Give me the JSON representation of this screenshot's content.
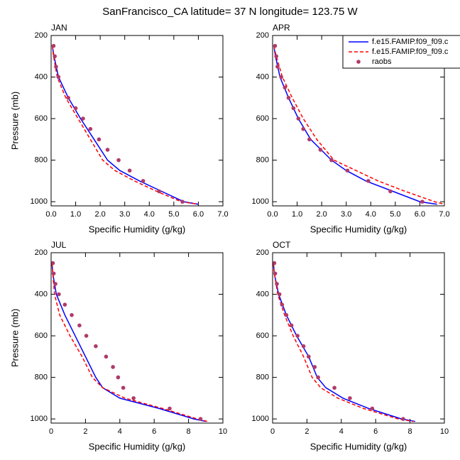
{
  "title": "SanFrancisco_CA  latitude= 37 N longitude= 123.75 W",
  "chart_data": [
    {
      "type": "line",
      "title": "JAN",
      "xlabel": "Specific Humidity (g/kg)",
      "ylabel": "Pressure (mb)",
      "xlim": [
        0,
        7
      ],
      "xticks": [
        {
          "value": 0,
          "label": "0.0"
        },
        {
          "value": 1,
          "label": "1.0"
        },
        {
          "value": 2,
          "label": "2.0"
        },
        {
          "value": 3,
          "label": "3.0"
        },
        {
          "value": 4,
          "label": "4.0"
        },
        {
          "value": 5,
          "label": "5.0"
        },
        {
          "value": 6,
          "label": "6.0"
        },
        {
          "value": 7,
          "label": "7.0"
        }
      ],
      "ylim": [
        1020,
        200
      ],
      "yticks": [
        200,
        400,
        600,
        800,
        1000
      ],
      "series": [
        {
          "color": "#0000ff",
          "mode": "line",
          "dashed": false,
          "x": [
            0.05,
            0.12,
            0.3,
            0.7,
            1.2,
            1.75,
            2.3,
            2.8,
            3.6,
            4.5,
            5.4,
            6.0
          ],
          "y": [
            250,
            300,
            400,
            500,
            600,
            700,
            800,
            850,
            900,
            950,
            1000,
            1012
          ]
        },
        {
          "color": "#ff0000",
          "mode": "line",
          "dashed": true,
          "x": [
            0.05,
            0.1,
            0.25,
            0.6,
            1.1,
            1.6,
            2.1,
            2.6,
            3.4,
            4.3,
            5.3,
            6.0
          ],
          "y": [
            250,
            300,
            400,
            500,
            600,
            700,
            800,
            850,
            900,
            950,
            1000,
            1012
          ]
        },
        {
          "color": "#b03a6a",
          "mode": "markers",
          "x": [
            0.1,
            0.15,
            0.2,
            0.3,
            0.7,
            1.0,
            1.3,
            1.6,
            1.95,
            2.3,
            2.75,
            3.2,
            3.75,
            4.4,
            5.35
          ],
          "y": [
            250,
            300,
            350,
            400,
            500,
            550,
            600,
            650,
            700,
            750,
            800,
            850,
            900,
            950,
            1000
          ]
        }
      ]
    },
    {
      "type": "line",
      "title": "APR",
      "xlabel": "Specific Humidity (g/kg)",
      "legend": "upper right",
      "xlim": [
        0,
        7
      ],
      "xticks": [
        {
          "value": 0,
          "label": "0.0"
        },
        {
          "value": 1,
          "label": "1.0"
        },
        {
          "value": 2,
          "label": "2.0"
        },
        {
          "value": 3,
          "label": "3.0"
        },
        {
          "value": 4,
          "label": "4.0"
        },
        {
          "value": 5,
          "label": "5.0"
        },
        {
          "value": 6,
          "label": "6.0"
        },
        {
          "value": 7,
          "label": "7.0"
        }
      ],
      "ylim": [
        1020,
        200
      ],
      "yticks": [
        200,
        400,
        600,
        800,
        1000
      ],
      "series": [
        {
          "name": "f.e15.FAMIP.f09_f09.c",
          "color": "#0000ff",
          "mode": "line",
          "dashed": false,
          "x": [
            0.05,
            0.12,
            0.3,
            0.65,
            1.05,
            1.55,
            2.4,
            3.0,
            3.8,
            4.9,
            6.0,
            6.7
          ],
          "y": [
            250,
            300,
            400,
            500,
            600,
            700,
            800,
            850,
            900,
            950,
            1000,
            1012
          ]
        },
        {
          "name": "f.e15.FAMIP.f09_f09.c",
          "color": "#ff0000",
          "mode": "line",
          "dashed": true,
          "x": [
            0.05,
            0.15,
            0.4,
            0.8,
            1.25,
            1.8,
            2.5,
            3.4,
            4.3,
            5.4,
            6.6,
            7.0
          ],
          "y": [
            250,
            300,
            400,
            500,
            600,
            700,
            800,
            850,
            900,
            950,
            1000,
            1012
          ]
        },
        {
          "name": "raobs",
          "color": "#b03a6a",
          "mode": "markers",
          "x": [
            0.1,
            0.15,
            0.2,
            0.35,
            0.5,
            0.65,
            0.85,
            1.05,
            1.25,
            1.5,
            1.95,
            2.4,
            3.05,
            3.9,
            4.8,
            6.1
          ],
          "y": [
            250,
            300,
            350,
            400,
            450,
            500,
            550,
            600,
            650,
            700,
            750,
            800,
            850,
            900,
            950,
            1000
          ]
        }
      ]
    },
    {
      "type": "line",
      "title": "JUL",
      "xlabel": "Specific Humidity (g/kg)",
      "ylabel": "Pressure (mb)",
      "xlim": [
        0,
        10
      ],
      "xticks": [
        0,
        2,
        4,
        6,
        8,
        10
      ],
      "ylim": [
        1020,
        200
      ],
      "yticks": [
        200,
        400,
        600,
        800,
        1000
      ],
      "series": [
        {
          "color": "#0000ff",
          "mode": "line",
          "dashed": false,
          "x": [
            0.05,
            0.1,
            0.3,
            0.8,
            1.4,
            2.0,
            2.6,
            3.0,
            4.0,
            6.3,
            8.3,
            9.0
          ],
          "y": [
            250,
            300,
            400,
            500,
            600,
            700,
            800,
            850,
            900,
            950,
            1000,
            1012
          ]
        },
        {
          "color": "#ff0000",
          "mode": "line",
          "dashed": true,
          "x": [
            0.05,
            0.1,
            0.2,
            0.5,
            1.1,
            1.8,
            2.4,
            3.0,
            4.3,
            6.5,
            8.5,
            9.1
          ],
          "y": [
            250,
            300,
            400,
            500,
            600,
            700,
            800,
            850,
            900,
            950,
            1000,
            1012
          ]
        },
        {
          "color": "#b03a6a",
          "mode": "markers",
          "x": [
            0.1,
            0.15,
            0.25,
            0.45,
            0.8,
            1.2,
            1.65,
            2.05,
            2.6,
            3.2,
            3.6,
            3.9,
            4.2,
            4.8,
            6.9,
            8.7
          ],
          "y": [
            250,
            300,
            350,
            400,
            450,
            500,
            550,
            600,
            650,
            700,
            750,
            800,
            850,
            900,
            950,
            1000
          ]
        }
      ]
    },
    {
      "type": "line",
      "title": "OCT",
      "xlabel": "Specific Humidity (g/kg)",
      "xlim": [
        0,
        10
      ],
      "xticks": [
        0,
        2,
        4,
        6,
        8,
        10
      ],
      "ylim": [
        1020,
        200
      ],
      "yticks": [
        200,
        400,
        600,
        800,
        1000
      ],
      "series": [
        {
          "color": "#0000ff",
          "mode": "line",
          "dashed": false,
          "x": [
            0.05,
            0.1,
            0.35,
            0.8,
            1.4,
            2.1,
            2.6,
            3.1,
            4.1,
            5.6,
            7.5,
            8.3
          ],
          "y": [
            250,
            300,
            400,
            500,
            600,
            700,
            800,
            850,
            900,
            950,
            1000,
            1012
          ]
        },
        {
          "color": "#ff0000",
          "mode": "line",
          "dashed": true,
          "x": [
            0.05,
            0.1,
            0.3,
            0.7,
            1.2,
            1.8,
            2.3,
            2.8,
            3.8,
            5.3,
            7.3,
            8.2
          ],
          "y": [
            250,
            300,
            400,
            500,
            600,
            700,
            800,
            850,
            900,
            950,
            1000,
            1012
          ]
        },
        {
          "color": "#b03a6a",
          "mode": "markers",
          "x": [
            0.1,
            0.15,
            0.25,
            0.4,
            0.55,
            0.8,
            1.1,
            1.45,
            1.8,
            2.1,
            2.45,
            2.65,
            3.6,
            4.5,
            5.8,
            7.6
          ],
          "y": [
            250,
            300,
            350,
            400,
            450,
            500,
            550,
            600,
            650,
            700,
            750,
            800,
            850,
            900,
            950,
            1000
          ]
        }
      ]
    }
  ]
}
